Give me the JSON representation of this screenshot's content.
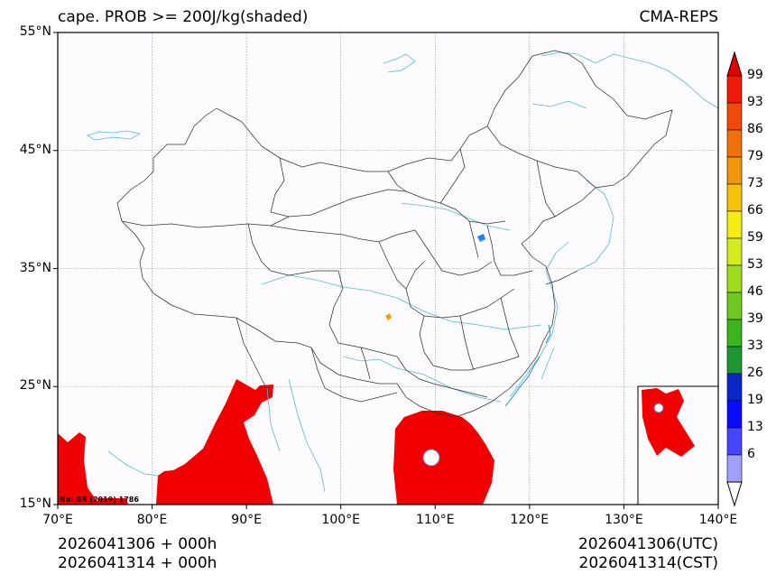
{
  "header": {
    "title_left": "cape. PROB >= 200J/kg(shaded)",
    "title_right": "CMA-REPS"
  },
  "map": {
    "lon_ticks": [
      "70°E",
      "80°E",
      "90°E",
      "100°E",
      "110°E",
      "120°E",
      "130°E",
      "140°E"
    ],
    "lat_ticks": [
      "55°N",
      "45°N",
      "35°N",
      "25°N",
      "15°N"
    ],
    "lon_range": [
      70,
      140
    ],
    "lat_range": [
      15,
      55
    ],
    "map_credit": "No: GS (2019) 1786",
    "shade_color": "#f00000",
    "border_color": "#333333",
    "river_color": "#4fb8e0"
  },
  "colorbar": {
    "labels": [
      "99",
      "93",
      "86",
      "79",
      "73",
      "66",
      "59",
      "53",
      "46",
      "39",
      "33",
      "26",
      "19",
      "13",
      "6"
    ],
    "colors": [
      "#f01a0a",
      "#f04a0a",
      "#f0700a",
      "#f0960a",
      "#f5c20a",
      "#f5ec14",
      "#d2ec1e",
      "#a0dc1e",
      "#6ec81e",
      "#3cb41e",
      "#1e9632",
      "#0a28c8",
      "#0a0aff",
      "#4646ff",
      "#a0a0ff"
    ],
    "top_color": "#e00000"
  },
  "footer": {
    "left_line1": "2026041306  +  000h",
    "left_line2": "2026041314  +  000h",
    "right_line1": "2026041306(UTC)",
    "right_line2": "2026041314(CST)"
  }
}
